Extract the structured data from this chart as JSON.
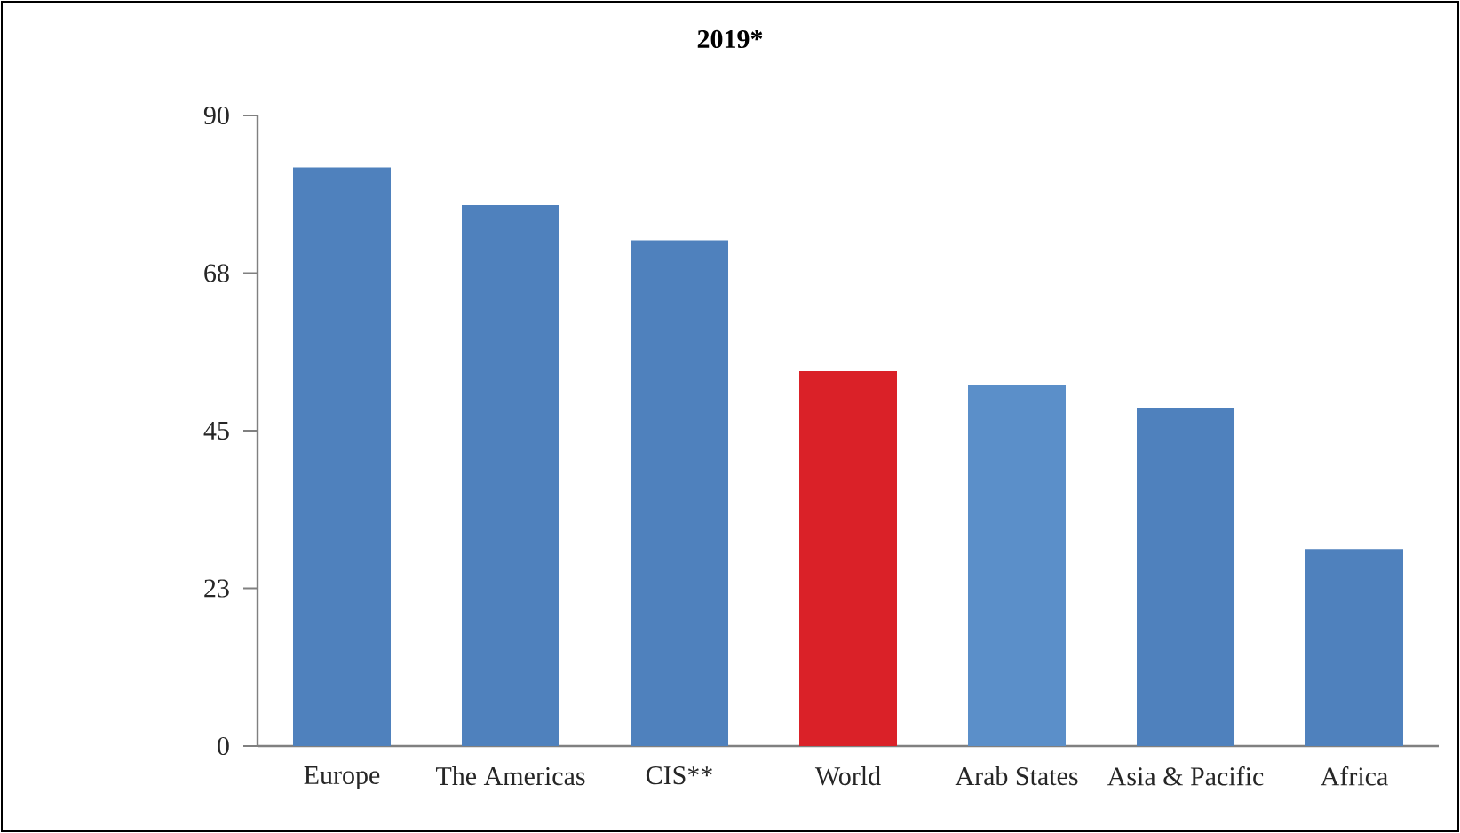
{
  "chart_data": {
    "type": "bar",
    "title": "2019*",
    "categories": [
      "Europe",
      "The Americas",
      "CIS**",
      "World",
      "Arab States",
      "Asia & Pacific",
      "Africa"
    ],
    "values": [
      82.6,
      77.2,
      72.2,
      53.5,
      51.5,
      48.3,
      28.1
    ],
    "colors": [
      "#4f81bd",
      "#4f81bd",
      "#4f81bd",
      "#da2128",
      "#5b8fc9",
      "#4f81bd",
      "#4f81bd"
    ],
    "ylim": [
      0,
      90
    ],
    "yticks": [
      0,
      {
        "value": 22.5,
        "label": "23"
      },
      45,
      {
        "value": 67.5,
        "label": "68"
      },
      90
    ],
    "grid": false
  }
}
